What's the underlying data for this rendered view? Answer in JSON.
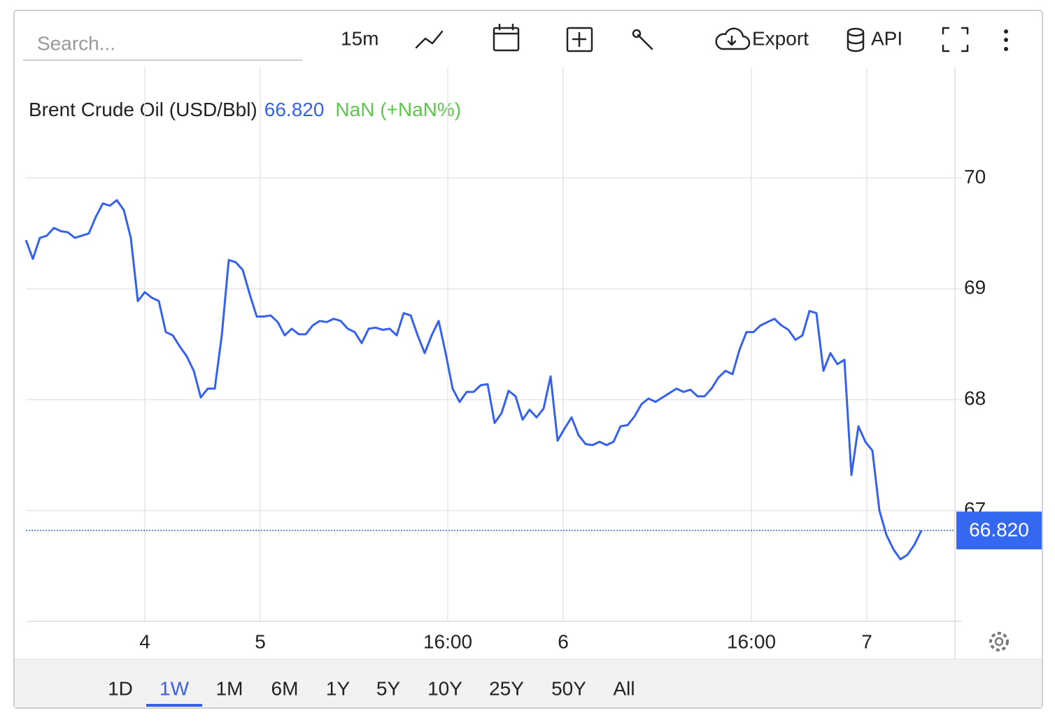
{
  "toolbar": {
    "search_placeholder": "Search...",
    "interval": "15m",
    "export": "Export",
    "api": "API"
  },
  "ranges": [
    "1D",
    "1W",
    "1M",
    "6M",
    "1Y",
    "5Y",
    "10Y",
    "25Y",
    "50Y",
    "All"
  ],
  "active_range": 1,
  "chart_data": {
    "type": "line",
    "title": "Brent Crude Oil (USD/Bbl)",
    "change": "NaN (+NaN%)",
    "last": {
      "value": 66.82,
      "label": "66.820"
    },
    "series": [
      {
        "name": "Brent Crude Oil (USD/Bbl)",
        "color": "#3561ec",
        "values": [
          69.44,
          69.27,
          69.46,
          69.48,
          69.55,
          69.52,
          69.51,
          69.46,
          69.48,
          69.5,
          69.65,
          69.77,
          69.75,
          69.8,
          69.71,
          69.46,
          68.89,
          68.97,
          68.92,
          68.89,
          68.61,
          68.58,
          68.48,
          68.39,
          68.26,
          68.02,
          68.1,
          68.1,
          68.58,
          69.26,
          69.24,
          69.17,
          68.95,
          68.75,
          68.75,
          68.76,
          68.7,
          68.58,
          68.64,
          68.59,
          68.59,
          68.67,
          68.71,
          68.7,
          68.73,
          68.71,
          68.64,
          68.61,
          68.51,
          68.64,
          68.65,
          68.63,
          68.64,
          68.58,
          68.78,
          68.76,
          68.58,
          68.42,
          68.58,
          68.71,
          68.42,
          68.1,
          67.98,
          68.07,
          68.07,
          68.13,
          68.14,
          67.79,
          67.88,
          68.08,
          68.03,
          67.82,
          67.91,
          67.84,
          67.92,
          68.21,
          67.63,
          67.74,
          67.84,
          67.68,
          67.6,
          67.59,
          67.62,
          67.59,
          67.62,
          67.76,
          67.77,
          67.85,
          67.96,
          68.01,
          67.98,
          68.02,
          68.06,
          68.1,
          68.07,
          68.09,
          68.03,
          68.03,
          68.1,
          68.2,
          68.26,
          68.23,
          68.45,
          68.61,
          68.61,
          68.67,
          68.7,
          68.73,
          68.67,
          68.63,
          68.54,
          68.58,
          68.8,
          68.78,
          68.26,
          68.42,
          68.32,
          68.36,
          67.32,
          67.76,
          67.62,
          67.54,
          67.0,
          66.78,
          66.65,
          66.56,
          66.6,
          66.69,
          66.82
        ]
      }
    ],
    "xlim": [
      0,
      132.8
    ],
    "xticks": [
      {
        "value": 17,
        "label": "4"
      },
      {
        "value": 33.5,
        "label": "5"
      },
      {
        "value": 60.3,
        "label": "16:00"
      },
      {
        "value": 76.8,
        "label": "6"
      },
      {
        "value": 103.7,
        "label": "16:00"
      },
      {
        "value": 120.2,
        "label": "7"
      }
    ],
    "ylim": [
      66,
      71
    ],
    "yticks": [
      67,
      68,
      69,
      70
    ],
    "grid": true
  }
}
